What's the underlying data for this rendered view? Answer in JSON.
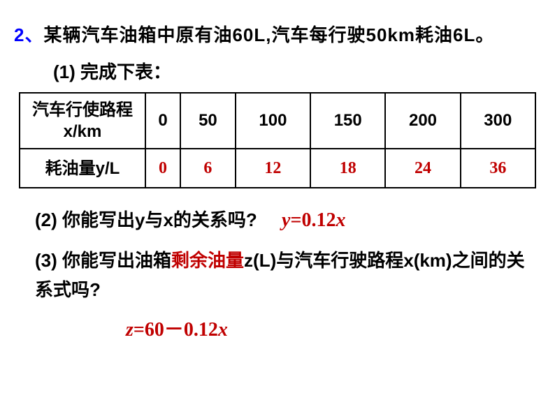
{
  "problem": {
    "number": "2、",
    "statement": "某辆汽车油箱中原有油60L,汽车每行驶50km耗油6L。"
  },
  "subtask1": {
    "label": "(1) 完成下表：",
    "table": {
      "row1_header": "汽车行使路程x/km",
      "row2_header": "耗油量y/L",
      "columns": [
        "0",
        "50",
        "100",
        "150",
        "200",
        "300"
      ],
      "values": [
        "0",
        "6",
        "12",
        "18",
        "24",
        "36"
      ]
    }
  },
  "subtask2": {
    "question": "(2) 你能写出y与x的关系吗?",
    "answer_y": "y",
    "answer_eq": "=0.12",
    "answer_x": "x"
  },
  "subtask3": {
    "question_part1": "(3) 你能写出油箱",
    "question_highlight": "剩余油量",
    "question_part2": "z(L)与汽车行驶路程x(km)之间的关系式吗?",
    "answer_z": "z",
    "answer_eq": "=60－0.12",
    "answer_x": "x"
  },
  "colors": {
    "accent_blue": "#0000ff",
    "accent_red": "#c00000",
    "text": "#000000",
    "background": "#ffffff",
    "border": "#000000"
  }
}
